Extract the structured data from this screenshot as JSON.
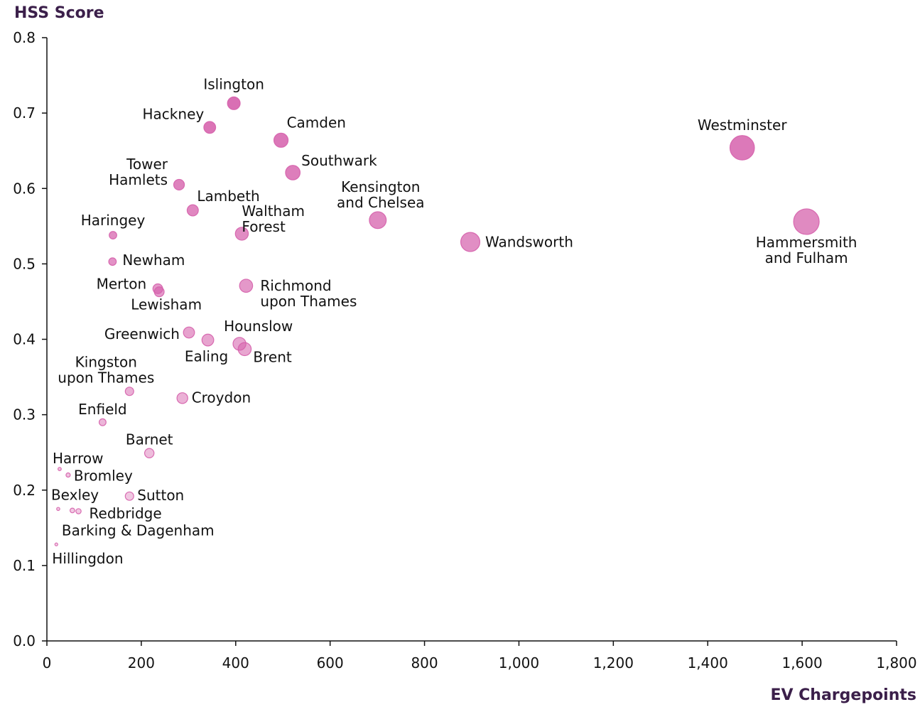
{
  "chart_data": {
    "type": "scatter",
    "xlabel": "EV Chargepoints",
    "ylabel": "HSS Score",
    "xlim": [
      0,
      1800
    ],
    "ylim": [
      0,
      0.8
    ],
    "x_ticks": [
      "0",
      "200",
      "400",
      "600",
      "800",
      "1,000",
      "1,200",
      "1,400",
      "1,600",
      "1,800"
    ],
    "y_ticks": [
      "0.0",
      "0.1",
      "0.2",
      "0.3",
      "0.4",
      "0.5",
      "0.6",
      "0.7",
      "0.8"
    ],
    "point_color": "#d55fab",
    "points": [
      {
        "label": "Islington",
        "x": 396,
        "y": 0.713
      },
      {
        "label": "Hackney",
        "x": 345,
        "y": 0.681
      },
      {
        "label": "Camden",
        "x": 496,
        "y": 0.664
      },
      {
        "label": "Westminster",
        "x": 1473,
        "y": 0.654
      },
      {
        "label": "Southwark",
        "x": 521,
        "y": 0.621
      },
      {
        "label": "Tower Hamlets",
        "x": 280,
        "y": 0.605
      },
      {
        "label": "Lambeth",
        "x": 309,
        "y": 0.571
      },
      {
        "label": "Kensington and Chelsea",
        "x": 701,
        "y": 0.558
      },
      {
        "label": "Hammersmith and Fulham",
        "x": 1609,
        "y": 0.556
      },
      {
        "label": "Haringey",
        "x": 140,
        "y": 0.538
      },
      {
        "label": "Waltham Forest",
        "x": 413,
        "y": 0.54
      },
      {
        "label": "Wandsworth",
        "x": 897,
        "y": 0.529
      },
      {
        "label": "Newham",
        "x": 139,
        "y": 0.503
      },
      {
        "label": "Merton",
        "x": 235,
        "y": 0.467
      },
      {
        "label": "Lewisham",
        "x": 238,
        "y": 0.463
      },
      {
        "label": "Richmond upon Thames",
        "x": 422,
        "y": 0.471
      },
      {
        "label": "Greenwich",
        "x": 301,
        "y": 0.409
      },
      {
        "label": "Ealing",
        "x": 341,
        "y": 0.399
      },
      {
        "label": "Hounslow",
        "x": 408,
        "y": 0.394
      },
      {
        "label": "Brent",
        "x": 419,
        "y": 0.387
      },
      {
        "label": "Kingston upon Thames",
        "x": 175,
        "y": 0.331
      },
      {
        "label": "Croydon",
        "x": 287,
        "y": 0.322
      },
      {
        "label": "Enfield",
        "x": 118,
        "y": 0.29
      },
      {
        "label": "Barnet",
        "x": 217,
        "y": 0.249
      },
      {
        "label": "Harrow",
        "x": 27,
        "y": 0.228
      },
      {
        "label": "Bromley",
        "x": 45,
        "y": 0.22
      },
      {
        "label": "Sutton",
        "x": 175,
        "y": 0.192
      },
      {
        "label": "Bexley",
        "x": 24,
        "y": 0.175
      },
      {
        "label": "Redbridge",
        "x": 67,
        "y": 0.172
      },
      {
        "label": "Barking & Dagenham",
        "x": 54,
        "y": 0.173
      },
      {
        "label": "Hillingdon",
        "x": 20,
        "y": 0.128
      }
    ]
  }
}
